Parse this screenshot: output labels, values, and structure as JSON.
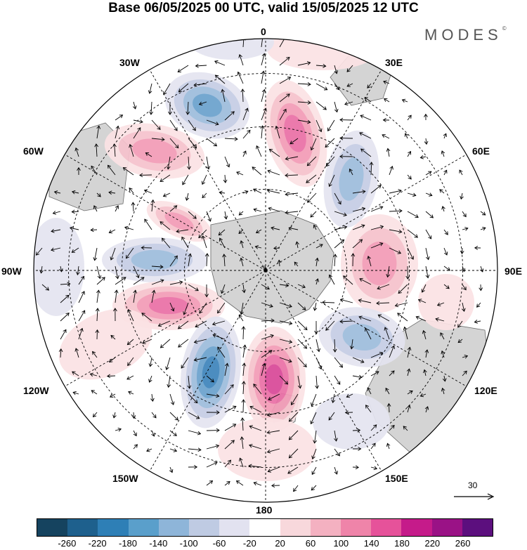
{
  "title": "Base 06/05/2025 00 UTC, valid 15/05/2025 12 UTC",
  "brand": "MODES",
  "brand_mark": "©",
  "longitude_labels": [
    {
      "id": "0",
      "text": "0"
    },
    {
      "id": "30e",
      "text": "30E"
    },
    {
      "id": "60e",
      "text": "60E"
    },
    {
      "id": "90e",
      "text": "90E"
    },
    {
      "id": "120e",
      "text": "120E"
    },
    {
      "id": "150e",
      "text": "150E"
    },
    {
      "id": "180",
      "text": "180"
    },
    {
      "id": "150w",
      "text": "150W"
    },
    {
      "id": "120w",
      "text": "120W"
    },
    {
      "id": "90w",
      "text": "90W"
    },
    {
      "id": "60w",
      "text": "60W"
    },
    {
      "id": "30w",
      "text": "30W"
    }
  ],
  "wind_scale_label": "30",
  "colorbar": {
    "colors": [
      "#15435f",
      "#1e608d",
      "#2e7fb6",
      "#5a9fcb",
      "#8eb5d9",
      "#bfcbe3",
      "#e2e2f0",
      "#ffffff",
      "#f8d8dc",
      "#f4b1c1",
      "#ef84a9",
      "#e6529a",
      "#c51b8a",
      "#9a1286",
      "#5c0f7e"
    ],
    "tick_labels": [
      "-260",
      "-220",
      "-180",
      "-140",
      "-100",
      "-60",
      "-20",
      "20",
      "60",
      "100",
      "140",
      "180",
      "220",
      "260"
    ]
  },
  "anomaly_palette": {
    "neg": [
      "#e4e4f0",
      "#c5cde4",
      "#9dbcdc",
      "#6aa1cd",
      "#3d84bb",
      "#2a6a9c"
    ],
    "pos": [
      "#fbe2e4",
      "#f6c2cc",
      "#f29bb6",
      "#ea6fa6",
      "#d84797",
      "#b61e84"
    ],
    "land": "#d4d4d4",
    "coast": "#6e6e6e"
  }
}
